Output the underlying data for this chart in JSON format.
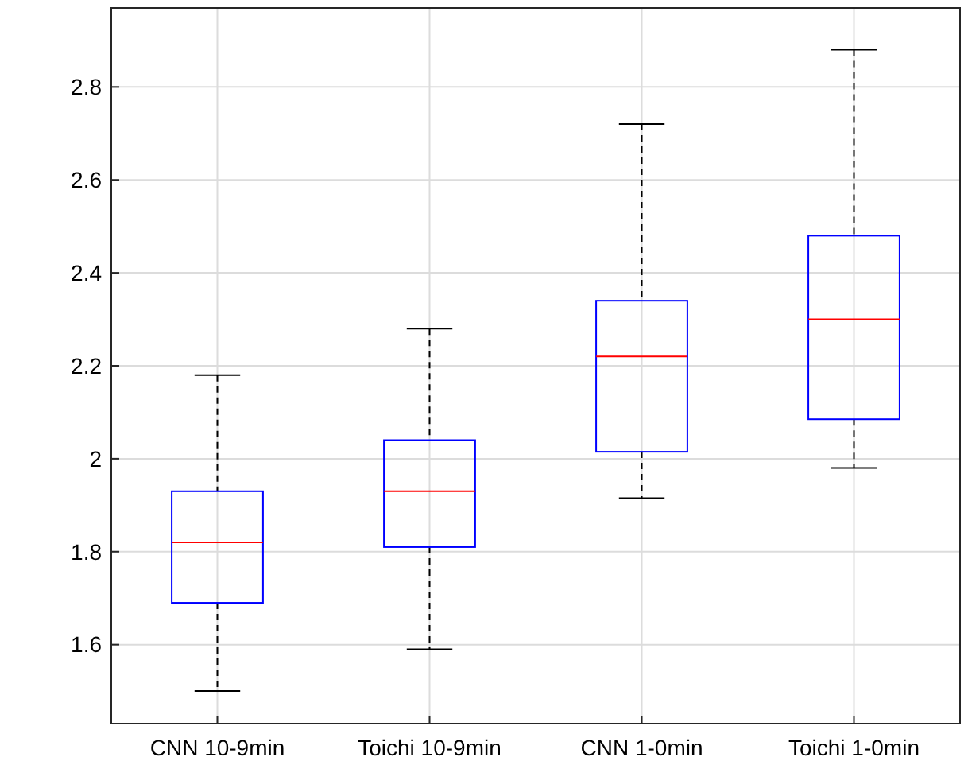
{
  "chart_data": {
    "type": "box",
    "categories": [
      "CNN 10-9min",
      "Toichi 10-9min",
      "CNN 1-0min",
      "Toichi 1-0min"
    ],
    "boxes": [
      {
        "low": 1.5,
        "q1": 1.69,
        "median": 1.82,
        "q3": 1.93,
        "high": 2.18
      },
      {
        "low": 1.59,
        "q1": 1.81,
        "median": 1.93,
        "q3": 2.04,
        "high": 2.28
      },
      {
        "low": 1.915,
        "q1": 2.015,
        "median": 2.22,
        "q3": 2.34,
        "high": 2.72
      },
      {
        "low": 1.98,
        "q1": 2.085,
        "median": 2.3,
        "q3": 2.48,
        "high": 2.88
      }
    ],
    "color": "#0000ff",
    "ylim": [
      1.43,
      2.97
    ],
    "yticks": [
      1.6,
      1.8,
      2,
      2.2,
      2.4,
      2.6,
      2.8
    ],
    "grid": true
  }
}
